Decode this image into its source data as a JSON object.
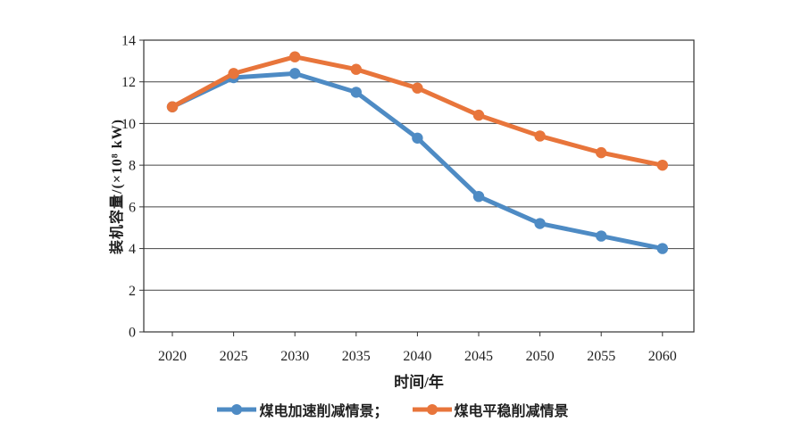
{
  "chart_data": {
    "type": "line",
    "x": [
      2020,
      2025,
      2030,
      2035,
      2040,
      2045,
      2050,
      2055,
      2060
    ],
    "series": [
      {
        "name": "煤电加速削减情景",
        "color": "#4E8BC4",
        "values": [
          10.8,
          12.2,
          12.4,
          11.5,
          9.3,
          6.5,
          5.2,
          4.6,
          4.0
        ]
      },
      {
        "name": "煤电平稳削减情景",
        "color": "#E8753B",
        "values": [
          10.8,
          12.4,
          13.2,
          12.6,
          11.7,
          10.4,
          9.4,
          8.6,
          8.0
        ]
      }
    ],
    "xlabel": "时间/年",
    "ylabel": "装机容量/(×10⁸ kW)",
    "ylim": [
      0,
      14
    ],
    "ytick_step": 2,
    "grid": "horizontal",
    "legend_position": "bottom"
  },
  "legend": {
    "entries": [
      {
        "label": "煤电加速削减情景；",
        "color": "#4E8BC4"
      },
      {
        "label": "煤电平稳削减情景",
        "color": "#E8753B"
      }
    ]
  },
  "style": {
    "grid_color": "#454545",
    "axis_color": "#333333",
    "background": "#ffffff"
  }
}
